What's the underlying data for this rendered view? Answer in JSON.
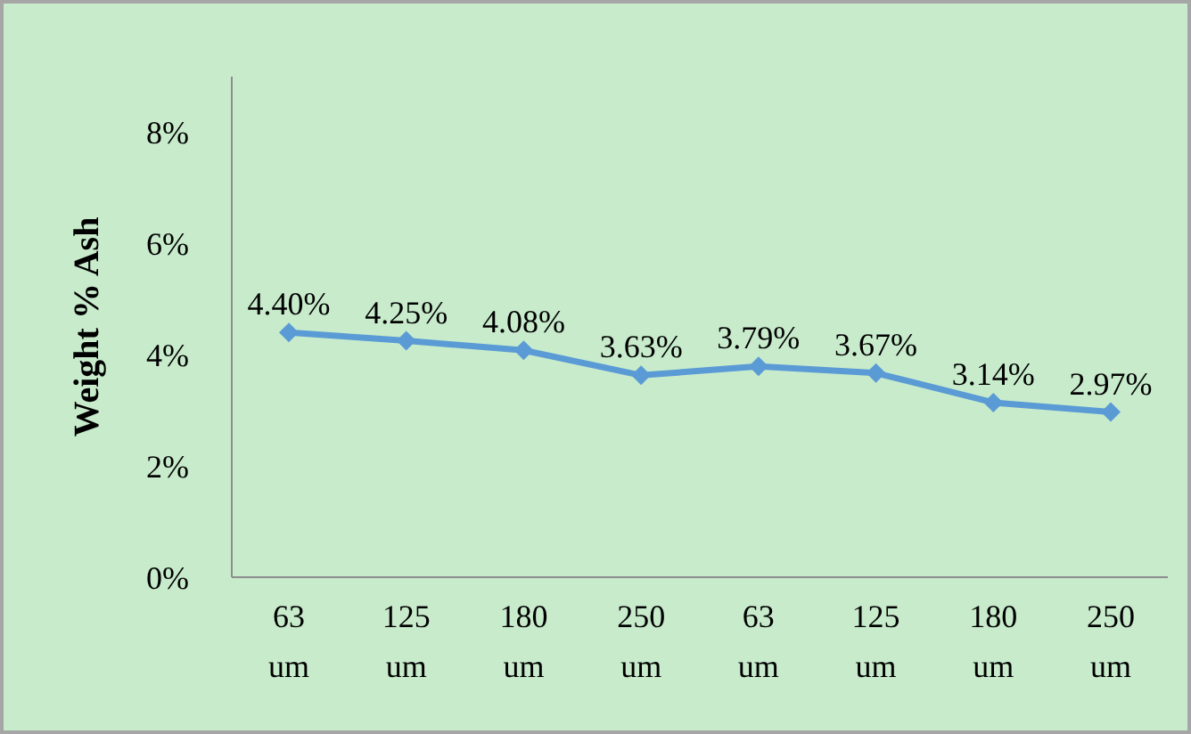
{
  "chart_data": {
    "type": "line",
    "ylabel": "Weight % Ash",
    "categories": [
      "63 um",
      "125 um",
      "180 um",
      "250 um",
      "63 um",
      "125 um",
      "180 um",
      "250 um"
    ],
    "series": [
      {
        "color": "#5b9bd5",
        "values": [
          4.4,
          4.25,
          4.08,
          3.63,
          3.79,
          3.67,
          3.14,
          2.97
        ],
        "value_labels": [
          "4.40%",
          "4.25%",
          "4.08%",
          "3.63%",
          "3.79%",
          "3.67%",
          "3.14%",
          "2.97%"
        ]
      }
    ],
    "ylim": [
      0,
      9
    ],
    "yticks": [
      {
        "value": 0,
        "label": "0%"
      },
      {
        "value": 2,
        "label": "2%"
      },
      {
        "value": 4,
        "label": "4%"
      },
      {
        "value": 6,
        "label": "6%"
      },
      {
        "value": 8,
        "label": "8%"
      }
    ],
    "grid": false,
    "legend": false,
    "marker": "diamond",
    "line_style": "solid"
  }
}
